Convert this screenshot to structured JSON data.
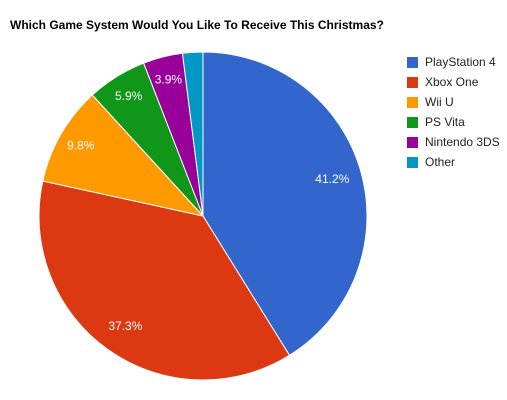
{
  "chart_data": {
    "type": "pie",
    "title": "Which Game System Would You Like To Receive This Christmas?",
    "legend_position": "right",
    "slices": [
      {
        "label": "PlayStation 4",
        "value": 41.2,
        "display": "41.2%",
        "color": "#3366cc"
      },
      {
        "label": "Xbox One",
        "value": 37.3,
        "display": "37.3%",
        "color": "#dc3912"
      },
      {
        "label": "Wii U",
        "value": 9.8,
        "display": "9.8%",
        "color": "#ff9900"
      },
      {
        "label": "PS Vita",
        "value": 5.9,
        "display": "5.9%",
        "color": "#109618"
      },
      {
        "label": "Nintendo 3DS",
        "value": 3.9,
        "display": "3.9%",
        "color": "#990099"
      },
      {
        "label": "Other",
        "value": 2.0,
        "display": "",
        "color": "#0099c6"
      }
    ]
  }
}
